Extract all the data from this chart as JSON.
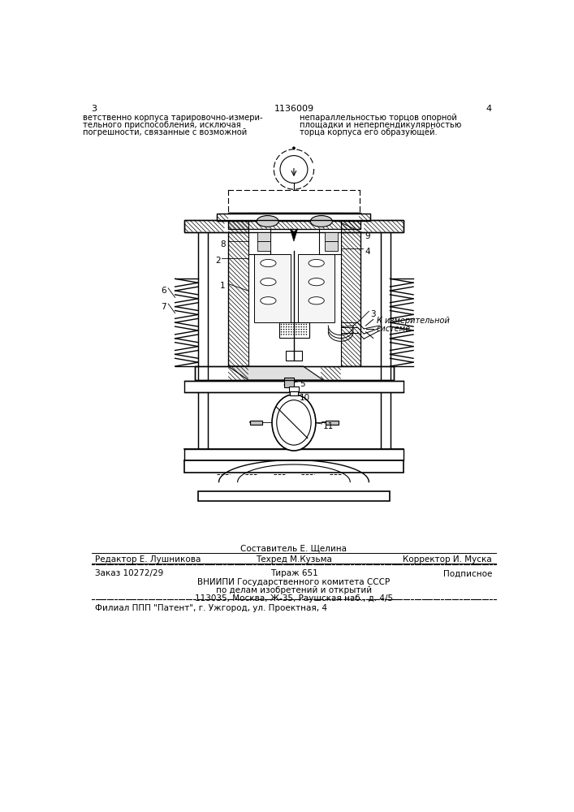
{
  "page_number_left": "3",
  "page_number_right": "4",
  "patent_number": "1136009",
  "top_text_left": "ветственно корпуса тарировочно-измери-\nтельного приспособления, исключая\nпогрешности, связанные с возможной",
  "top_text_right": "непараллельностью торцов опорной\nплощадки и неперпендикулярностью\nторца корпуса его образующей.",
  "label_annotation_line1": "К измерительной",
  "label_annotation_line2": "системе",
  "bottom_line1_above": "Составитель Е. Щелина",
  "bottom_line1_left": "Редактор Е. Лушникова",
  "bottom_line1_center": "Техред М.Кузьма",
  "bottom_line1_right": "Корректор И. Муска",
  "bottom_line2_left": "Заказ 10272/29",
  "bottom_line2_center": "Тираж 651",
  "bottom_line2_right": "Подписное",
  "bottom_line3": "ВНИИПИ Государственного комитета СССР",
  "bottom_line4": "по делам изобретений и открытий",
  "bottom_line5": "113035, Москва, Ж-35, Раушская наб., д. 4/5",
  "bottom_line6": "Филиал ППП \"Патент\", г. Ужгород, ул. Проектная, 4",
  "bg_color": "#ffffff",
  "line_color": "#000000"
}
